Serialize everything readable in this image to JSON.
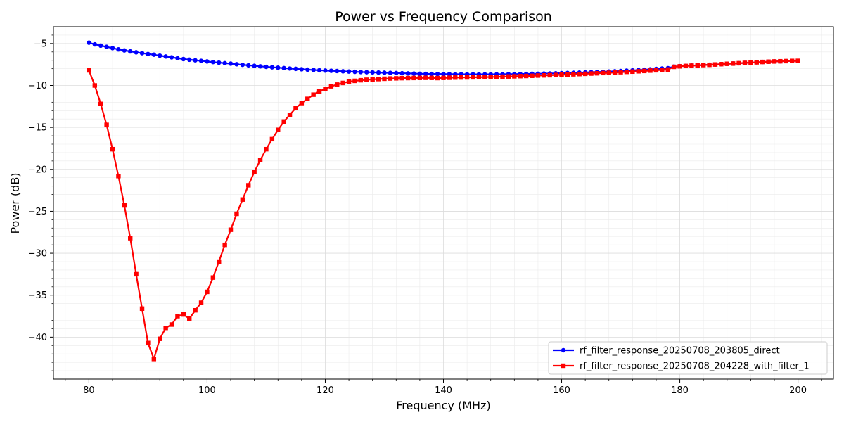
{
  "chart_data": {
    "type": "line",
    "title": "Power vs Frequency Comparison",
    "xlabel": "Frequency (MHz)",
    "ylabel": "Power (dB)",
    "xlim": [
      74,
      206
    ],
    "ylim": [
      -45,
      -3
    ],
    "xticks": [
      80,
      100,
      120,
      140,
      160,
      180,
      200
    ],
    "yticks": [
      -40,
      -35,
      -30,
      -25,
      -20,
      -15,
      -10,
      -5
    ],
    "xtick_labels": [
      "80",
      "100",
      "120",
      "140",
      "160",
      "180",
      "200"
    ],
    "ytick_labels": [
      "−40",
      "−35",
      "−30",
      "−25",
      "−20",
      "−15",
      "−10",
      "−5"
    ],
    "grid": true,
    "minor_grid": true,
    "legend_position": "bottom-right",
    "x_start": 80,
    "x_step": 1,
    "series": [
      {
        "name": "rf_filter_response_20250708_203805_direct",
        "color": "#0000ff",
        "marker": "circle",
        "values": [
          -4.9,
          -5.1,
          -5.25,
          -5.4,
          -5.55,
          -5.7,
          -5.82,
          -5.94,
          -6.05,
          -6.15,
          -6.25,
          -6.33,
          -6.45,
          -6.55,
          -6.65,
          -6.75,
          -6.85,
          -6.93,
          -7.0,
          -7.07,
          -7.14,
          -7.21,
          -7.28,
          -7.34,
          -7.4,
          -7.47,
          -7.54,
          -7.6,
          -7.66,
          -7.72,
          -7.78,
          -7.83,
          -7.88,
          -7.93,
          -7.98,
          -8.02,
          -8.07,
          -8.11,
          -8.15,
          -8.19,
          -8.22,
          -8.25,
          -8.28,
          -8.31,
          -8.34,
          -8.37,
          -8.4,
          -8.42,
          -8.44,
          -8.46,
          -8.48,
          -8.5,
          -8.52,
          -8.54,
          -8.56,
          -8.58,
          -8.6,
          -8.61,
          -8.62,
          -8.63,
          -8.64,
          -8.65,
          -8.66,
          -8.66,
          -8.67,
          -8.67,
          -8.67,
          -8.67,
          -8.67,
          -8.67,
          -8.66,
          -8.65,
          -8.65,
          -8.63,
          -8.62,
          -8.6,
          -8.6,
          -8.58,
          -8.57,
          -8.55,
          -8.53,
          -8.51,
          -8.49,
          -8.47,
          -8.45,
          -8.42,
          -8.4,
          -8.37,
          -8.34,
          -8.31,
          -8.28,
          -8.24,
          -8.2,
          -8.16,
          -8.12,
          -8.08,
          -8.03,
          -7.98,
          -7.94,
          -7.75,
          -7.7,
          -7.67,
          -7.63,
          -7.6,
          -7.56,
          -7.53,
          -7.5,
          -7.46,
          -7.42,
          -7.39,
          -7.35,
          -7.31,
          -7.28,
          -7.24,
          -7.2,
          -7.17,
          -7.14,
          -7.12,
          -7.1,
          -7.08,
          -7.07
        ]
      },
      {
        "name": "rf_filter_response_20250708_204228_with_filter_1",
        "color": "#ff0000",
        "marker": "square",
        "values": [
          -8.2,
          -10.0,
          -12.2,
          -14.7,
          -17.6,
          -20.8,
          -24.3,
          -28.2,
          -32.5,
          -36.6,
          -40.7,
          -42.6,
          -40.2,
          -38.9,
          -38.5,
          -37.5,
          -37.3,
          -37.8,
          -36.8,
          -35.9,
          -34.6,
          -32.9,
          -31.0,
          -29.0,
          -27.2,
          -25.3,
          -23.6,
          -21.9,
          -20.3,
          -18.9,
          -17.6,
          -16.4,
          -15.3,
          -14.3,
          -13.5,
          -12.7,
          -12.1,
          -11.6,
          -11.1,
          -10.7,
          -10.4,
          -10.1,
          -9.9,
          -9.7,
          -9.55,
          -9.45,
          -9.38,
          -9.32,
          -9.28,
          -9.24,
          -9.2,
          -9.17,
          -9.15,
          -9.13,
          -9.12,
          -9.11,
          -9.1,
          -9.09,
          -9.1,
          -9.12,
          -9.1,
          -9.08,
          -9.06,
          -9.05,
          -9.04,
          -9.03,
          -9.02,
          -9.01,
          -8.99,
          -8.97,
          -8.95,
          -8.93,
          -8.91,
          -8.89,
          -8.87,
          -8.85,
          -8.82,
          -8.8,
          -8.78,
          -8.75,
          -8.72,
          -8.7,
          -8.67,
          -8.64,
          -8.61,
          -8.58,
          -8.55,
          -8.52,
          -8.49,
          -8.46,
          -8.42,
          -8.38,
          -8.35,
          -8.31,
          -8.27,
          -8.23,
          -8.19,
          -8.15,
          -8.1,
          -7.78,
          -7.72,
          -7.68,
          -7.64,
          -7.6,
          -7.57,
          -7.54,
          -7.5,
          -7.46,
          -7.42,
          -7.39,
          -7.35,
          -7.31,
          -7.28,
          -7.24,
          -7.2,
          -7.17,
          -7.14,
          -7.12,
          -7.1,
          -7.08,
          -7.07
        ]
      }
    ]
  }
}
